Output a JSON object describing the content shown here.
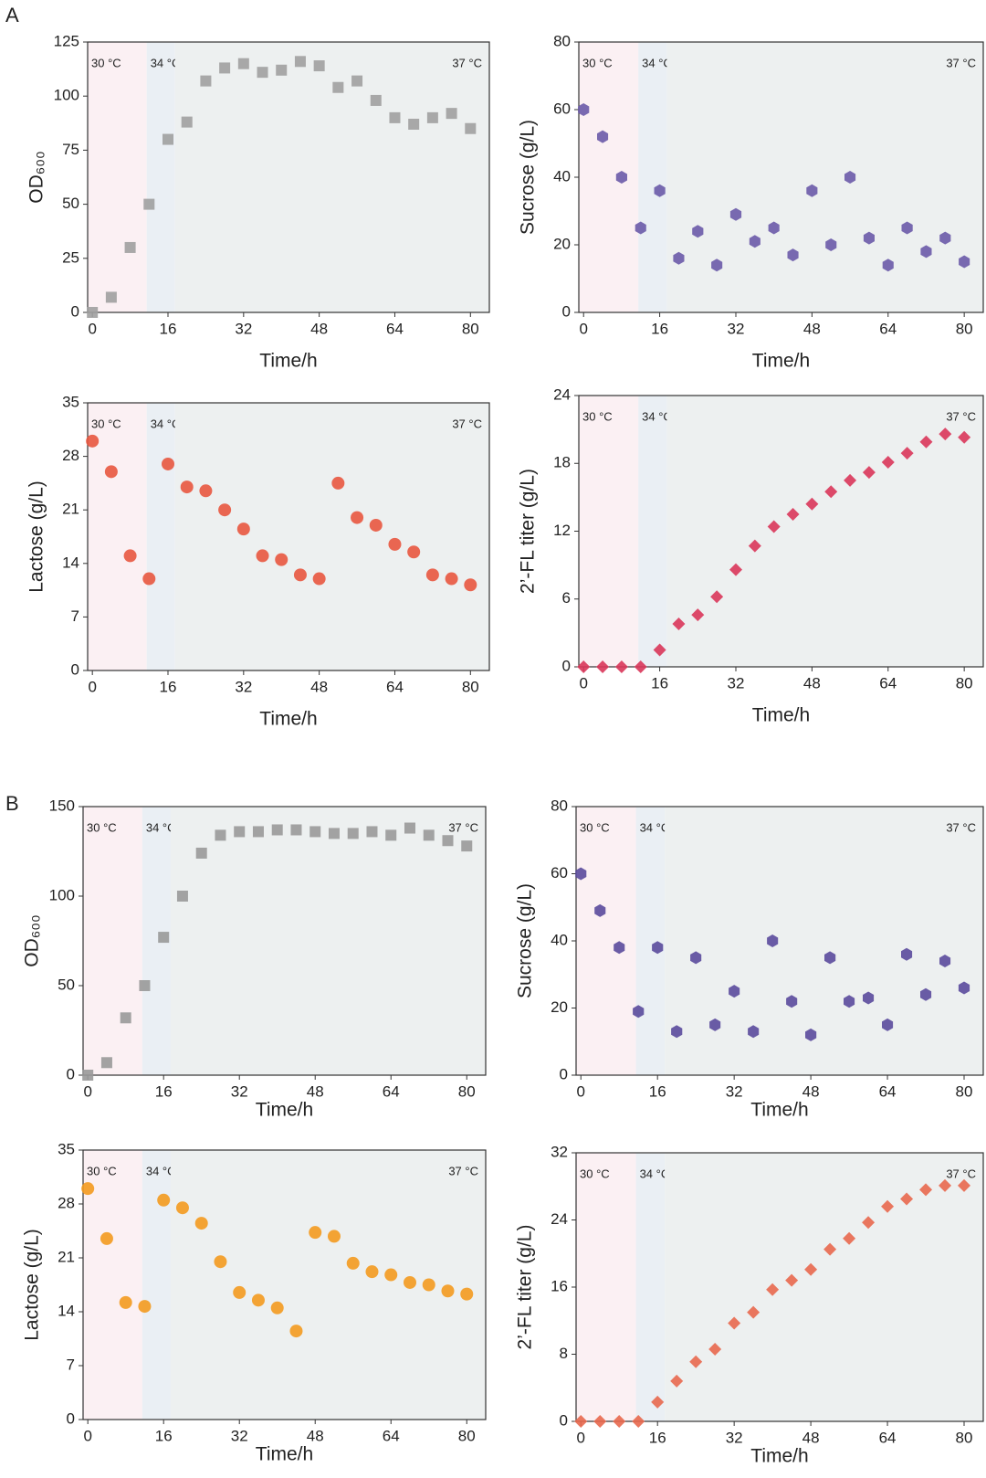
{
  "panels": [
    "A",
    "B"
  ],
  "chart_data": [
    {
      "type": "scatter",
      "marker": "square",
      "xlabel": "Time/h",
      "ylabel": "OD₆₀₀",
      "color": "#a0a0a0",
      "x": [
        0,
        4,
        8,
        12,
        16,
        20,
        24,
        28,
        32,
        36,
        40,
        44,
        48,
        52,
        56,
        60,
        64,
        68,
        72,
        76,
        80
      ],
      "values": [
        0,
        7,
        30,
        50,
        80,
        88,
        107,
        113,
        115,
        111,
        112,
        116,
        114,
        104,
        107,
        98,
        90,
        87,
        90,
        92,
        85
      ],
      "xlim": [
        -1,
        84
      ],
      "xticks": [
        0,
        16,
        32,
        48,
        64,
        80
      ],
      "ylim": [
        0,
        125
      ],
      "yticks": [
        0,
        25,
        50,
        75,
        100,
        125
      ],
      "regions": [
        {
          "label": "30 °C",
          "from": -1,
          "to": 11.5,
          "color": "#fbf0f3"
        },
        {
          "label": "34 °C",
          "from": 11.5,
          "to": 17.5,
          "color": "#eaeff4"
        },
        {
          "label": "37 °C",
          "from": 17.5,
          "to": 84,
          "color": "#edf0f0"
        }
      ]
    },
    {
      "type": "scatter",
      "marker": "hexagon",
      "xlabel": "Time/h",
      "ylabel": "Sucrose (g/L)",
      "color": "#6a5aa8",
      "x": [
        0,
        4,
        8,
        12,
        16,
        20,
        24,
        28,
        32,
        36,
        40,
        44,
        48,
        52,
        56,
        60,
        64,
        68,
        72,
        76,
        80
      ],
      "values": [
        60,
        52,
        40,
        25,
        36,
        16,
        24,
        14,
        29,
        21,
        25,
        17,
        36,
        20,
        40,
        22,
        14,
        25,
        18,
        22,
        15
      ],
      "xlim": [
        -1,
        84
      ],
      "xticks": [
        0,
        16,
        32,
        48,
        64,
        80
      ],
      "ylim": [
        0,
        80
      ],
      "yticks": [
        0,
        20,
        40,
        60,
        80
      ],
      "regions": [
        {
          "label": "30 °C",
          "from": -1,
          "to": 11.5,
          "color": "#fbf0f3"
        },
        {
          "label": "34 °C",
          "from": 11.5,
          "to": 17.5,
          "color": "#eaeff4"
        },
        {
          "label": "37 °C",
          "from": 17.5,
          "to": 84,
          "color": "#edf0f0"
        }
      ]
    },
    {
      "type": "scatter",
      "marker": "circle",
      "xlabel": "Time/h",
      "ylabel": "Lactose  (g/L)",
      "color": "#e8573f",
      "x": [
        0,
        4,
        8,
        12,
        16,
        20,
        24,
        28,
        32,
        36,
        40,
        44,
        48,
        52,
        56,
        60,
        64,
        68,
        72,
        76,
        80
      ],
      "values": [
        30,
        26,
        15,
        12,
        27,
        24,
        23.5,
        21,
        18.5,
        15,
        14.5,
        12.5,
        12,
        24.5,
        20,
        19,
        16.5,
        15.5,
        12.5,
        12,
        11.2
      ],
      "xlim": [
        -1,
        84
      ],
      "xticks": [
        0,
        16,
        32,
        48,
        64,
        80
      ],
      "ylim": [
        0,
        35
      ],
      "yticks": [
        0,
        7,
        14,
        21,
        28,
        35
      ],
      "regions": [
        {
          "label": "30 °C",
          "from": -1,
          "to": 11.5,
          "color": "#fbf0f3"
        },
        {
          "label": "34 °C",
          "from": 11.5,
          "to": 17.5,
          "color": "#eaeff4"
        },
        {
          "label": "37 °C",
          "from": 17.5,
          "to": 84,
          "color": "#edf0f0"
        }
      ]
    },
    {
      "type": "scatter",
      "marker": "diamond",
      "xlabel": "Time/h",
      "ylabel": "2’-FL titer  (g/L)",
      "color": "#d9365a",
      "x": [
        0,
        4,
        8,
        12,
        16,
        20,
        24,
        28,
        32,
        36,
        40,
        44,
        48,
        52,
        56,
        60,
        64,
        68,
        72,
        76,
        80
      ],
      "values": [
        0,
        0,
        0,
        0,
        1.5,
        3.8,
        4.6,
        6.2,
        8.6,
        10.7,
        12.4,
        13.5,
        14.4,
        15.5,
        16.5,
        17.2,
        18.1,
        18.9,
        19.9,
        20.6,
        20.3
      ],
      "xlim": [
        -1,
        84
      ],
      "xticks": [
        0,
        16,
        32,
        48,
        64,
        80
      ],
      "ylim": [
        0,
        24
      ],
      "yticks": [
        0,
        6,
        12,
        18,
        24
      ],
      "regions": [
        {
          "label": "30 °C",
          "from": -1,
          "to": 11.5,
          "color": "#fbf0f3"
        },
        {
          "label": "34 °C",
          "from": 11.5,
          "to": 17.5,
          "color": "#eaeff4"
        },
        {
          "label": "37 °C",
          "from": 17.5,
          "to": 84,
          "color": "#edf0f0"
        }
      ]
    },
    {
      "type": "scatter",
      "marker": "square",
      "xlabel": "Time/h",
      "ylabel": "OD₆₀₀",
      "color": "#999999",
      "x": [
        0,
        4,
        8,
        12,
        16,
        20,
        24,
        28,
        32,
        36,
        40,
        44,
        48,
        52,
        56,
        60,
        64,
        68,
        72,
        76,
        80
      ],
      "values": [
        0,
        7,
        32,
        50,
        77,
        100,
        124,
        134,
        136,
        136,
        137,
        137,
        136,
        135,
        135,
        136,
        134,
        138,
        134,
        131,
        128
      ],
      "xlim": [
        -1,
        84
      ],
      "xticks": [
        0,
        16,
        32,
        48,
        64,
        80
      ],
      "ylim": [
        0,
        150
      ],
      "yticks": [
        0,
        50,
        100,
        150
      ],
      "regions": [
        {
          "label": "30 °C",
          "from": -1,
          "to": 11.5,
          "color": "#fbf0f3"
        },
        {
          "label": "34 °C",
          "from": 11.5,
          "to": 17.5,
          "color": "#eaeff4"
        },
        {
          "label": "37 °C",
          "from": 17.5,
          "to": 84,
          "color": "#edf0f0"
        }
      ]
    },
    {
      "type": "scatter",
      "marker": "hexagon",
      "xlabel": "Time/h",
      "ylabel": "Sucrose (g/L)",
      "color": "#5a4a9c",
      "x": [
        0,
        4,
        8,
        12,
        16,
        20,
        24,
        28,
        32,
        36,
        40,
        44,
        48,
        52,
        56,
        60,
        64,
        68,
        72,
        76,
        80
      ],
      "values": [
        60,
        49,
        38,
        19,
        38,
        13,
        35,
        15,
        25,
        13,
        40,
        22,
        12,
        35,
        22,
        23,
        15,
        36,
        24,
        34,
        26
      ],
      "xlim": [
        -1,
        84
      ],
      "xticks": [
        0,
        16,
        32,
        48,
        64,
        80
      ],
      "ylim": [
        0,
        80
      ],
      "yticks": [
        0,
        20,
        40,
        60,
        80
      ],
      "regions": [
        {
          "label": "30 °C",
          "from": -1,
          "to": 11.5,
          "color": "#fbf0f3"
        },
        {
          "label": "34 °C",
          "from": 11.5,
          "to": 17.5,
          "color": "#eaeff4"
        },
        {
          "label": "37 °C",
          "from": 17.5,
          "to": 84,
          "color": "#edf0f0"
        }
      ]
    },
    {
      "type": "scatter",
      "marker": "circle",
      "xlabel": "Time/h",
      "ylabel": "Lactose (g/L)",
      "color": "#f39a1f",
      "x": [
        0,
        4,
        8,
        12,
        16,
        20,
        24,
        28,
        32,
        36,
        40,
        44,
        48,
        52,
        56,
        60,
        64,
        68,
        72,
        76,
        80
      ],
      "values": [
        30,
        23.5,
        15.2,
        14.7,
        28.5,
        27.5,
        25.5,
        20.5,
        16.5,
        15.5,
        14.5,
        11.5,
        24.3,
        23.8,
        20.3,
        19.2,
        18.8,
        17.8,
        17.5,
        16.7,
        16.3
      ],
      "xlim": [
        -1,
        84
      ],
      "xticks": [
        0,
        16,
        32,
        48,
        64,
        80
      ],
      "ylim": [
        0,
        35
      ],
      "yticks": [
        0,
        7,
        14,
        21,
        28,
        35
      ],
      "regions": [
        {
          "label": "30 °C",
          "from": -1,
          "to": 11.5,
          "color": "#fbf0f3"
        },
        {
          "label": "34 °C",
          "from": 11.5,
          "to": 17.5,
          "color": "#eaeff4"
        },
        {
          "label": "37 °C",
          "from": 17.5,
          "to": 84,
          "color": "#edf0f0"
        }
      ]
    },
    {
      "type": "scatter",
      "marker": "diamond",
      "xlabel": "Time/h",
      "ylabel": "2’-FL titer (g/L)",
      "color": "#e8684e",
      "x": [
        0,
        4,
        8,
        12,
        16,
        20,
        24,
        28,
        32,
        36,
        40,
        44,
        48,
        52,
        56,
        60,
        64,
        68,
        72,
        76,
        80
      ],
      "values": [
        0,
        0,
        0,
        0,
        2.3,
        4.8,
        7.1,
        8.6,
        11.7,
        13,
        15.7,
        16.8,
        18.1,
        20.5,
        21.8,
        23.7,
        25.6,
        26.5,
        27.6,
        28.1,
        28.1
      ],
      "xlim": [
        -1,
        84
      ],
      "xticks": [
        0,
        16,
        32,
        48,
        64,
        80
      ],
      "ylim": [
        0,
        32
      ],
      "yticks": [
        0,
        8,
        16,
        24,
        32
      ],
      "regions": [
        {
          "label": "30 °C",
          "from": -1,
          "to": 11.5,
          "color": "#fbf0f3"
        },
        {
          "label": "34 °C",
          "from": 11.5,
          "to": 17.5,
          "color": "#eaeff4"
        },
        {
          "label": "37 °C",
          "from": 17.5,
          "to": 84,
          "color": "#edf0f0"
        }
      ]
    }
  ]
}
